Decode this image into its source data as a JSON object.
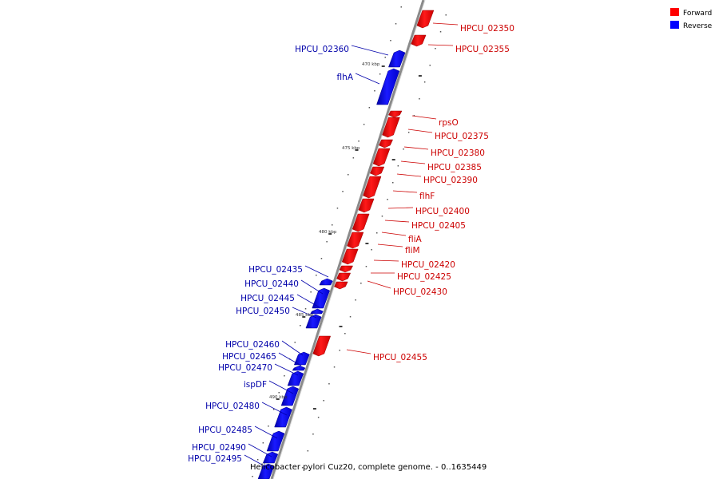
{
  "caption": "Helicobacter pylori Cuz20, complete genome. - 0..1635449",
  "legend": [
    {
      "label": "Forward",
      "color": "#ff0000"
    },
    {
      "label": "Reverse",
      "color": "#0000ff"
    }
  ],
  "colors": {
    "forward": "#ff0000",
    "forward_label": "#cc0000",
    "reverse": "#0000ff",
    "reverse_label": "#0000aa",
    "backbone": "#999999"
  },
  "scale_ticks": [
    "470 kbp",
    "475 kbp",
    "480 kbp",
    "485 kbp",
    "490 kbp"
  ],
  "forward_genes": [
    "HPCU_02350",
    "HPCU_02355",
    "rpsO",
    "HPCU_02375",
    "HPCU_02380",
    "HPCU_02385",
    "HPCU_02390",
    "flhF",
    "HPCU_02400",
    "HPCU_02405",
    "fliA",
    "fliM",
    "HPCU_02420",
    "HPCU_02425",
    "HPCU_02430",
    "HPCU_02455"
  ],
  "reverse_genes": [
    "HPCU_02360",
    "flhA",
    "HPCU_02435",
    "HPCU_02440",
    "HPCU_02445",
    "HPCU_02450",
    "HPCU_02460",
    "HPCU_02465",
    "HPCU_02470",
    "ispDF",
    "HPCU_02480",
    "HPCU_02485",
    "HPCU_02490",
    "HPCU_02495"
  ]
}
